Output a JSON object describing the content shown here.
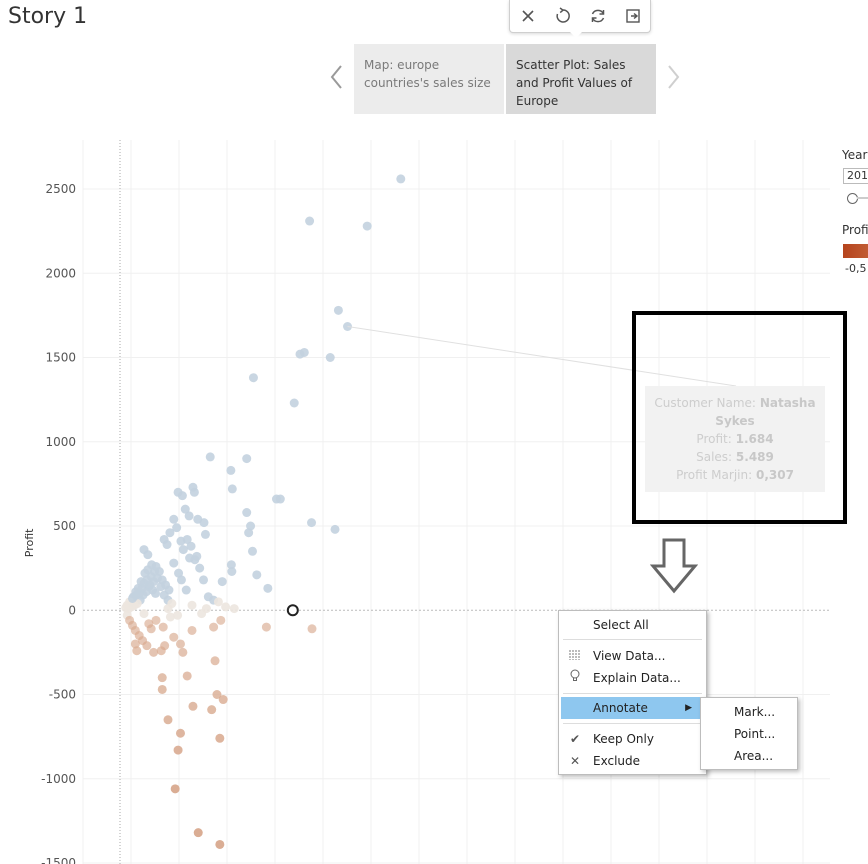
{
  "story": {
    "title": "Story 1"
  },
  "toolbar": {
    "icons": [
      "close-icon",
      "undo-icon",
      "refresh-icon",
      "export-icon"
    ]
  },
  "story_points": [
    {
      "label": "Map: europe countries's sales size"
    },
    {
      "label": "Scatter Plot: Sales and Profit Values of Europe"
    }
  ],
  "legend": {
    "year_label": "Year",
    "year_value": "201",
    "profit_label": "Profi",
    "profit_min": "-0,5",
    "colors": {
      "negative": "#b5441d",
      "negative_light": "#c96a42"
    }
  },
  "chart_data": {
    "type": "scatter",
    "xlabel": "",
    "ylabel": "Profit",
    "ylim": [
      -1500,
      2700
    ],
    "y_ticks": [
      2500,
      2000,
      1500,
      1000,
      500,
      0,
      -500,
      -1000,
      -1500
    ],
    "y_tick_labels": [
      "2500",
      "2000",
      "1500",
      "1000",
      "500",
      "0",
      "-500",
      "-1000",
      "-1500"
    ],
    "grid": true,
    "colors": {
      "positive": "#c3d2df",
      "negative": "#d8a98e",
      "neutral": "#ece6df"
    },
    "points": [
      {
        "x": 5.85,
        "y": 2560
      },
      {
        "x": 3.95,
        "y": 2310
      },
      {
        "x": 5.15,
        "y": 2280
      },
      {
        "x": 4.55,
        "y": 1780
      },
      {
        "x": 4.74,
        "y": 1684
      },
      {
        "x": 3.75,
        "y": 1520
      },
      {
        "x": 3.84,
        "y": 1530
      },
      {
        "x": 4.38,
        "y": 1500
      },
      {
        "x": 2.78,
        "y": 1380
      },
      {
        "x": 3.63,
        "y": 1230
      },
      {
        "x": 1.88,
        "y": 910
      },
      {
        "x": 2.31,
        "y": 830
      },
      {
        "x": 2.64,
        "y": 900
      },
      {
        "x": 2.34,
        "y": 720
      },
      {
        "x": 3.26,
        "y": 660
      },
      {
        "x": 3.34,
        "y": 660
      },
      {
        "x": 2.64,
        "y": 580
      },
      {
        "x": 3.99,
        "y": 520
      },
      {
        "x": 2.72,
        "y": 500
      },
      {
        "x": 2.68,
        "y": 460
      },
      {
        "x": 4.48,
        "y": 480
      },
      {
        "x": 2.76,
        "y": 350
      },
      {
        "x": 1.75,
        "y": 520
      },
      {
        "x": 1.78,
        "y": 450
      },
      {
        "x": 2.13,
        "y": 170
      },
      {
        "x": 2.32,
        "y": 270
      },
      {
        "x": 2.33,
        "y": 230
      },
      {
        "x": 2.85,
        "y": 210
      },
      {
        "x": 3.08,
        "y": 130
      },
      {
        "x": 0.5,
        "y": 360
      },
      {
        "x": 0.58,
        "y": 330
      },
      {
        "x": 0.92,
        "y": 420
      },
      {
        "x": 0.98,
        "y": 390
      },
      {
        "x": 1.04,
        "y": 460
      },
      {
        "x": 1.21,
        "y": 700
      },
      {
        "x": 1.3,
        "y": 680
      },
      {
        "x": 1.52,
        "y": 730
      },
      {
        "x": 1.55,
        "y": 700
      },
      {
        "x": 1.44,
        "y": 560
      },
      {
        "x": 1.36,
        "y": 600
      },
      {
        "x": 1.62,
        "y": 540
      },
      {
        "x": 1.12,
        "y": 540
      },
      {
        "x": 1.18,
        "y": 490
      },
      {
        "x": 1.27,
        "y": 410
      },
      {
        "x": 1.32,
        "y": 360
      },
      {
        "x": 1.45,
        "y": 310
      },
      {
        "x": 1.6,
        "y": 320
      },
      {
        "x": 1.12,
        "y": 280
      },
      {
        "x": 1.22,
        "y": 220
      },
      {
        "x": 0.75,
        "y": 260
      },
      {
        "x": 0.82,
        "y": 230
      },
      {
        "x": 0.88,
        "y": 180
      },
      {
        "x": 0.95,
        "y": 150
      },
      {
        "x": 1.02,
        "y": 120
      },
      {
        "x": 0.65,
        "y": 200
      },
      {
        "x": 0.7,
        "y": 170
      },
      {
        "x": 0.6,
        "y": 140
      },
      {
        "x": 0.55,
        "y": 110
      },
      {
        "x": 0.48,
        "y": 90
      },
      {
        "x": 0.42,
        "y": 60
      },
      {
        "x": 0.36,
        "y": 40
      },
      {
        "x": 0.3,
        "y": 30
      },
      {
        "x": 0.24,
        "y": 20
      },
      {
        "x": 0.18,
        "y": 10
      },
      {
        "x": 0.15,
        "y": 30
      },
      {
        "x": 0.12,
        "y": 15
      },
      {
        "x": 0.28,
        "y": 80
      },
      {
        "x": 0.33,
        "y": 110
      },
      {
        "x": 0.38,
        "y": 130
      },
      {
        "x": 0.44,
        "y": 170
      },
      {
        "x": 0.52,
        "y": 220
      },
      {
        "x": 0.58,
        "y": 240
      },
      {
        "x": 0.66,
        "y": 270
      },
      {
        "x": 0.72,
        "y": 230
      },
      {
        "x": 0.78,
        "y": 190
      },
      {
        "x": 0.85,
        "y": 140
      },
      {
        "x": 0.92,
        "y": 90
      },
      {
        "x": 1.0,
        "y": 60
      },
      {
        "x": 1.08,
        "y": 40
      },
      {
        "x": 0.2,
        "y": 50
      },
      {
        "x": 0.26,
        "y": 70
      },
      {
        "x": 0.34,
        "y": 90
      },
      {
        "x": 0.4,
        "y": 100
      },
      {
        "x": 0.46,
        "y": 130
      },
      {
        "x": 0.5,
        "y": 160
      },
      {
        "x": 0.56,
        "y": 180
      },
      {
        "x": 0.62,
        "y": 150
      },
      {
        "x": 0.68,
        "y": 120
      },
      {
        "x": 0.74,
        "y": 100
      },
      {
        "x": 1.4,
        "y": 420
      },
      {
        "x": 1.48,
        "y": 380
      },
      {
        "x": 1.56,
        "y": 300
      },
      {
        "x": 1.66,
        "y": 250
      },
      {
        "x": 1.74,
        "y": 180
      },
      {
        "x": 1.84,
        "y": 80
      },
      {
        "x": 1.95,
        "y": 60
      },
      {
        "x": 2.05,
        "y": 50
      },
      {
        "x": 1.28,
        "y": 180
      },
      {
        "x": 1.38,
        "y": 120
      },
      {
        "x": 0.15,
        "y": -30
      },
      {
        "x": 0.2,
        "y": -60
      },
      {
        "x": 0.26,
        "y": -90
      },
      {
        "x": 0.32,
        "y": -120
      },
      {
        "x": 0.4,
        "y": -150
      },
      {
        "x": 0.47,
        "y": -180
      },
      {
        "x": 0.32,
        "y": -200
      },
      {
        "x": 0.35,
        "y": -240
      },
      {
        "x": 0.56,
        "y": -210
      },
      {
        "x": 0.7,
        "y": -250
      },
      {
        "x": 0.86,
        "y": -240
      },
      {
        "x": 0.93,
        "y": -210
      },
      {
        "x": 0.88,
        "y": -400
      },
      {
        "x": 0.88,
        "y": -470
      },
      {
        "x": 1.12,
        "y": -160
      },
      {
        "x": 1.26,
        "y": -200
      },
      {
        "x": 1.31,
        "y": -250
      },
      {
        "x": 1.4,
        "y": -390
      },
      {
        "x": 1.0,
        "y": -650
      },
      {
        "x": 1.26,
        "y": -730
      },
      {
        "x": 1.21,
        "y": -830
      },
      {
        "x": 1.15,
        "y": -1060
      },
      {
        "x": 1.52,
        "y": -570
      },
      {
        "x": 1.91,
        "y": -590
      },
      {
        "x": 2.02,
        "y": -500
      },
      {
        "x": 2.15,
        "y": -530
      },
      {
        "x": 2.08,
        "y": -760
      },
      {
        "x": 1.63,
        "y": -1320
      },
      {
        "x": 1.98,
        "y": -300
      },
      {
        "x": 2.08,
        "y": -1390
      },
      {
        "x": 0.6,
        "y": -80
      },
      {
        "x": 0.75,
        "y": -60
      },
      {
        "x": 0.9,
        "y": -100
      },
      {
        "x": 1.05,
        "y": -40
      },
      {
        "x": 1.5,
        "y": -120
      },
      {
        "x": 1.95,
        "y": -100
      },
      {
        "x": 2.1,
        "y": -60
      },
      {
        "x": 1.7,
        "y": -20
      },
      {
        "x": 0.5,
        "y": -20
      },
      {
        "x": 0.65,
        "y": -110
      },
      {
        "x": 2.38,
        "y": 10
      },
      {
        "x": 3.05,
        "y": -100
      },
      {
        "x": 4.0,
        "y": -110
      },
      {
        "x": 1.5,
        "y": 30
      },
      {
        "x": 1.8,
        "y": 10
      },
      {
        "x": 2.2,
        "y": 20
      },
      {
        "x": 1.2,
        "y": -30
      },
      {
        "x": 1.0,
        "y": 10
      }
    ],
    "origin_marker": {
      "x": 3.6,
      "y": 0
    }
  },
  "tooltip": {
    "customer_label": "Customer Name:",
    "customer_value": "Natasha Sykes",
    "profit_label": "Profit:",
    "profit_value": "1.684",
    "sales_label": "Sales:",
    "sales_value": "5.489",
    "margin_label": "Profit Marjin:",
    "margin_value": "0,307"
  },
  "context_menu": {
    "select_all": "Select All",
    "view_data": "View Data...",
    "explain_data": "Explain Data...",
    "annotate": "Annotate",
    "keep_only": "Keep Only",
    "exclude": "Exclude"
  },
  "annotate_submenu": {
    "mark": "Mark...",
    "point": "Point...",
    "area": "Area..."
  }
}
